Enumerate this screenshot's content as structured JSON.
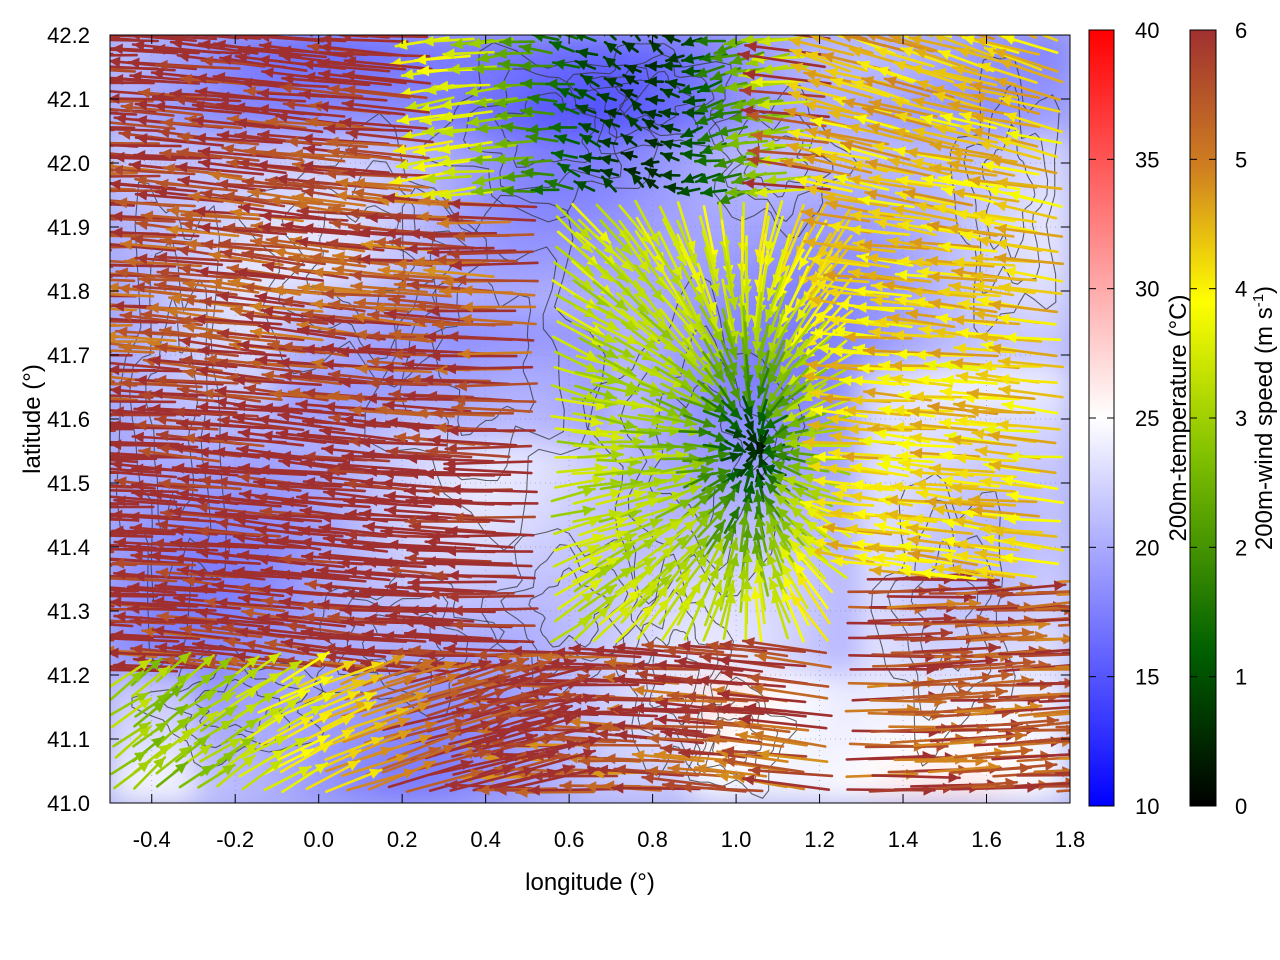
{
  "chart_data": {
    "type": "vector field over colormap",
    "xlabel": "longitude (°)",
    "ylabel": "latitude (°)",
    "xlim": [
      -0.5,
      1.8
    ],
    "ylim": [
      41.0,
      42.2
    ],
    "x_ticks": [
      "-0.4",
      "-0.2",
      "0.0",
      "0.2",
      "0.4",
      "0.6",
      "0.8",
      "1.0",
      "1.2",
      "1.4",
      "1.6",
      "1.8"
    ],
    "x_tick_values": [
      -0.4,
      -0.2,
      0.0,
      0.2,
      0.4,
      0.6,
      0.8,
      1.0,
      1.2,
      1.4,
      1.6,
      1.8
    ],
    "y_ticks": [
      "41.0",
      "41.1",
      "41.2",
      "41.3",
      "41.4",
      "41.5",
      "41.6",
      "41.7",
      "41.8",
      "41.9",
      "42.0",
      "42.1",
      "42.2"
    ],
    "y_tick_values": [
      41.0,
      41.1,
      41.2,
      41.3,
      41.4,
      41.5,
      41.6,
      41.7,
      41.8,
      41.9,
      42.0,
      42.1,
      42.2
    ],
    "grid": true,
    "temperature_colorbar": {
      "label": "200m-temperature (°C)",
      "range": [
        10,
        40
      ],
      "ticks": [
        "10",
        "15",
        "20",
        "25",
        "30",
        "35",
        "40"
      ],
      "tick_values": [
        10,
        15,
        20,
        25,
        30,
        35,
        40
      ],
      "colors": [
        "#0000ff",
        "#ffffff",
        "#ff0000"
      ]
    },
    "wind_colorbar": {
      "label": "200m-wind speed (m s-1)",
      "range": [
        0,
        6
      ],
      "ticks": [
        "0",
        "1",
        "2",
        "3",
        "4",
        "5",
        "6"
      ],
      "tick_values": [
        0,
        1,
        2,
        3,
        4,
        5,
        6
      ],
      "colors": [
        "#000000",
        "#006000",
        "#80c000",
        "#ffff00",
        "#d08020",
        "#a03030"
      ]
    },
    "background_temperature_range_c": [
      15,
      30
    ],
    "wind_speed_range_ms": [
      0,
      6
    ],
    "flow_pattern": "strong westward flow (about 6 m/s) over the western and northern half; weaker converging winds (1-4 m/s) near longitude 0.6-1.2, latitude 41.3-41.9; strong eastward flow in the south-east"
  }
}
